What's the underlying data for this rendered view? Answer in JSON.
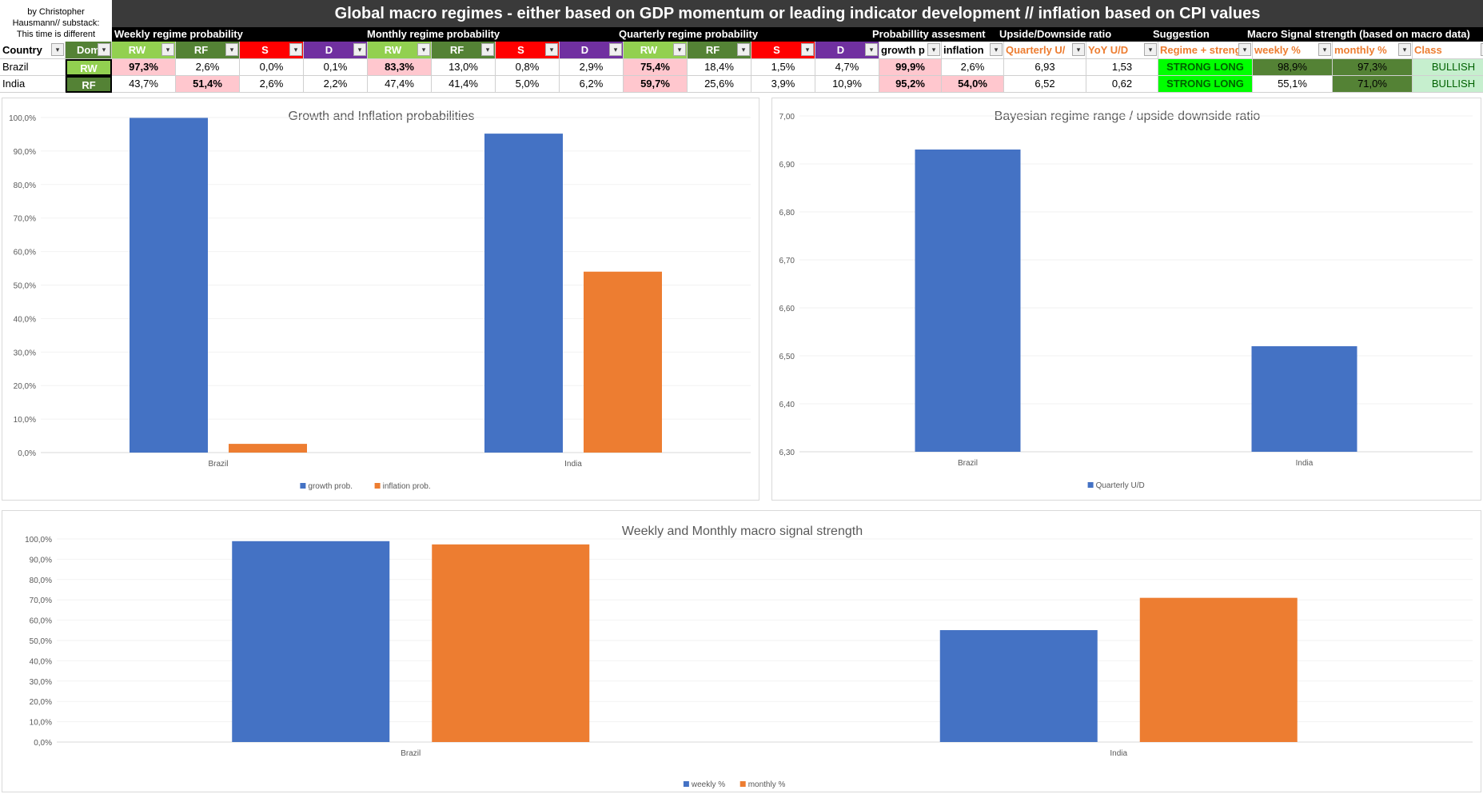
{
  "credit": [
    "by Christopher",
    "Hausmann// substack:",
    "This time is different"
  ],
  "title": "Global macro regimes - either based on GDP momentum or leading indicator development // inflation based on CPI values",
  "groups": [
    "Weekly regime probability",
    "Monthly regime probability",
    "Quarterly regime probability",
    "Probabillity assesment",
    "Upside/Downside ratio",
    "Suggestion",
    "Macro Signal strength (based on macro data)"
  ],
  "headers": [
    "Country",
    "Dom",
    "RW",
    "RF",
    "S",
    "D",
    "RW",
    "RF",
    "S",
    "D",
    "RW",
    "RF",
    "S",
    "D",
    "growth p",
    "inflation",
    "Quarterly U/",
    "YoY U/D",
    "Regime + streng",
    "weekly %",
    "monthly %",
    "Class"
  ],
  "rows": [
    {
      "country": "Brazil",
      "dom": "RW",
      "values": [
        "97,3%",
        "2,6%",
        "0,0%",
        "0,1%",
        "83,3%",
        "13,0%",
        "0,8%",
        "2,9%",
        "75,4%",
        "18,4%",
        "1,5%",
        "4,7%",
        "99,9%",
        "2,6%",
        "6,93",
        "1,53",
        "STRONG LONG",
        "98,9%",
        "97,3%",
        "BULLISH"
      ]
    },
    {
      "country": "India",
      "dom": "RF",
      "values": [
        "43,7%",
        "51,4%",
        "2,6%",
        "2,2%",
        "47,4%",
        "41,4%",
        "5,0%",
        "6,2%",
        "59,7%",
        "25,6%",
        "3,9%",
        "10,9%",
        "95,2%",
        "54,0%",
        "6,52",
        "0,62",
        "STRONG LONG",
        "55,1%",
        "71,0%",
        "BULLISH"
      ]
    }
  ],
  "colors": {
    "rw": "#92d050",
    "rf": "#548235",
    "s": "#ff0000",
    "d": "#7030a0",
    "pink": "#ffc7ce",
    "green_bright": "#00ff00",
    "green_dark": "#548235",
    "green_light": "#c6efce",
    "orange_text": "#ed7d31",
    "blue": "#4472c4",
    "orange": "#ed7d31"
  },
  "chart_data": [
    {
      "type": "bar",
      "title": "Growth and Inflation probabilities",
      "categories": [
        "Brazil",
        "India"
      ],
      "series": [
        {
          "name": "growth prob.",
          "values": [
            99.9,
            95.2
          ]
        },
        {
          "name": "inflation prob.",
          "values": [
            2.6,
            54.0
          ]
        }
      ],
      "ylim": [
        0,
        100
      ],
      "yticks": [
        "0,0%",
        "10,0%",
        "20,0%",
        "30,0%",
        "40,0%",
        "50,0%",
        "60,0%",
        "70,0%",
        "80,0%",
        "90,0%",
        "100,0%"
      ],
      "legend": "bottom"
    },
    {
      "type": "bar",
      "title": "Bayesian regime range / upside downside ratio",
      "categories": [
        "Brazil",
        "India"
      ],
      "series": [
        {
          "name": "Quarterly U/D",
          "values": [
            6.93,
            6.52
          ]
        }
      ],
      "ylim": [
        6.3,
        7.0
      ],
      "yticks": [
        "6,30",
        "6,40",
        "6,50",
        "6,60",
        "6,70",
        "6,80",
        "6,90",
        "7,00"
      ],
      "legend": "bottom"
    },
    {
      "type": "bar",
      "title": "Weekly and Monthly macro signal strength",
      "categories": [
        "Brazil",
        "India"
      ],
      "series": [
        {
          "name": "weekly %",
          "values": [
            98.9,
            55.1
          ]
        },
        {
          "name": "monthly %",
          "values": [
            97.3,
            71.0
          ]
        }
      ],
      "ylim": [
        0,
        100
      ],
      "yticks": [
        "0,0%",
        "10,0%",
        "20,0%",
        "30,0%",
        "40,0%",
        "50,0%",
        "60,0%",
        "70,0%",
        "80,0%",
        "90,0%",
        "100,0%"
      ],
      "legend": "bottom"
    }
  ]
}
